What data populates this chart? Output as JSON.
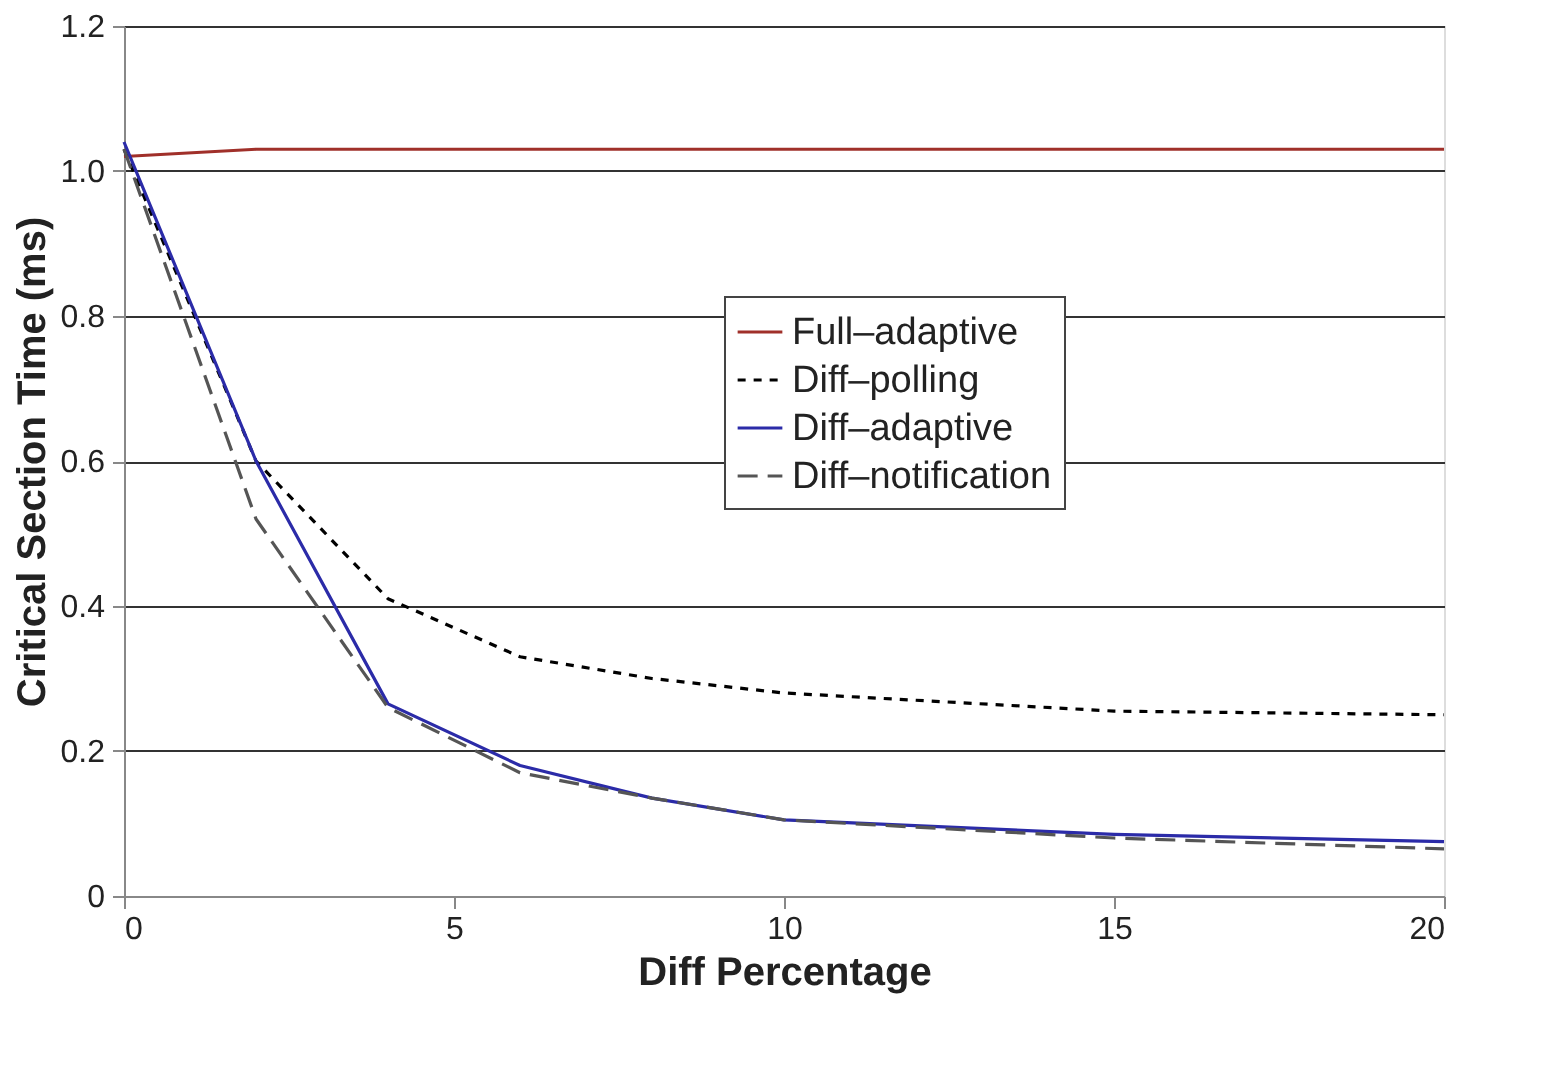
{
  "chart_data": {
    "type": "line",
    "xlabel": "Diff Percentage",
    "ylabel": "Critical Section Time (ms)",
    "x": [
      0,
      2,
      4,
      6,
      8,
      10,
      15,
      20
    ],
    "xlim": [
      0,
      20
    ],
    "xticks": [
      0,
      5,
      10,
      15,
      20
    ],
    "ylim": [
      0,
      1.2
    ],
    "yticks": [
      0,
      {
        "value": 0.2,
        "label": "0.2"
      },
      {
        "value": 0.4,
        "label": "0.4"
      },
      {
        "value": 0.6,
        "label": "0.6"
      },
      {
        "value": 0.8,
        "label": "0.8"
      },
      {
        "value": 1.0,
        "label": "1.0"
      },
      {
        "value": 1.2,
        "label": "1.2"
      }
    ],
    "grid": "y",
    "legend": "top right",
    "marker": "none",
    "series": [
      {
        "name": "Full–adaptive",
        "color": "#a0302a",
        "line_style": "solid",
        "values": [
          1.02,
          1.03,
          1.03,
          1.03,
          1.03,
          1.03,
          1.03,
          1.03
        ]
      },
      {
        "name": "Diff–polling",
        "color": "#000000",
        "line_style": "dotted",
        "values": [
          1.03,
          0.6,
          0.41,
          0.33,
          0.3,
          0.28,
          0.255,
          0.25
        ]
      },
      {
        "name": "Diff–adaptive",
        "color": "#2b2ba8",
        "line_style": "solid",
        "values": [
          1.04,
          0.6,
          0.265,
          0.18,
          0.135,
          0.105,
          0.085,
          0.075
        ]
      },
      {
        "name": "Diff–notification",
        "color": "#555555",
        "line_style": "dashed",
        "values": [
          1.03,
          0.52,
          0.26,
          0.17,
          0.135,
          0.105,
          0.08,
          0.065
        ]
      }
    ]
  }
}
